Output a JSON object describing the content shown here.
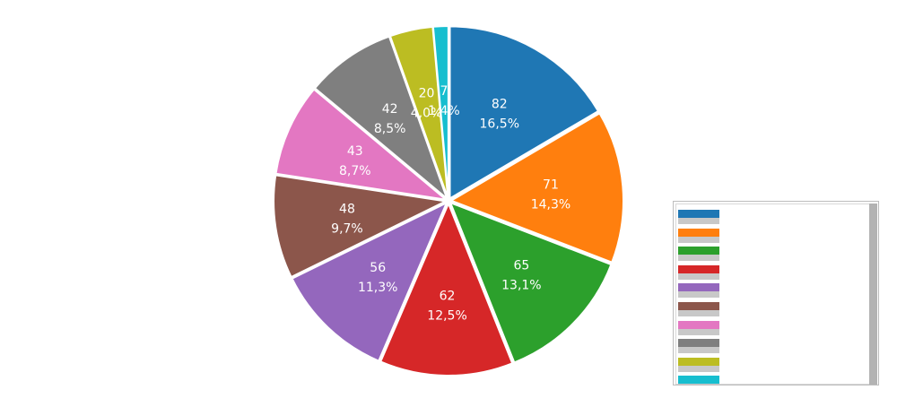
{
  "chart_data": {
    "type": "pie",
    "slices": [
      {
        "value": 82,
        "percent": "16,5%",
        "color": "#1f77b4"
      },
      {
        "value": 71,
        "percent": "14,3%",
        "color": "#ff7f0e"
      },
      {
        "value": 65,
        "percent": "13,1%",
        "color": "#2ca02c"
      },
      {
        "value": 62,
        "percent": "12,5%",
        "color": "#d62728"
      },
      {
        "value": 56,
        "percent": "11,3%",
        "color": "#9467bd"
      },
      {
        "value": 48,
        "percent": "9,7%",
        "color": "#8c564b"
      },
      {
        "value": 43,
        "percent": "8,7%",
        "color": "#e377c2"
      },
      {
        "value": 42,
        "percent": "8,5%",
        "color": "#7f7f7f"
      },
      {
        "value": 20,
        "percent": "4,0%",
        "color": "#bcbd22"
      },
      {
        "value": 7,
        "percent": "1,4%",
        "color": "#17becf"
      }
    ],
    "legend": {
      "placement": "right",
      "entries": [
        {
          "color": "#1f77b4",
          "label": ""
        },
        {
          "color": "#ff7f0e",
          "label": ""
        },
        {
          "color": "#2ca02c",
          "label": ""
        },
        {
          "color": "#d62728",
          "label": ""
        },
        {
          "color": "#9467bd",
          "label": ""
        },
        {
          "color": "#8c564b",
          "label": ""
        },
        {
          "color": "#e377c2",
          "label": ""
        },
        {
          "color": "#7f7f7f",
          "label": ""
        },
        {
          "color": "#bcbd22",
          "label": ""
        },
        {
          "color": "#17becf",
          "label": ""
        }
      ]
    }
  }
}
